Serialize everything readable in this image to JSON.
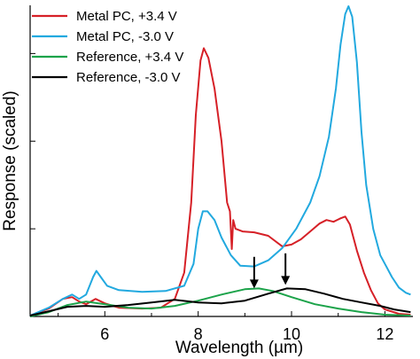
{
  "chart_data": {
    "type": "line",
    "xlabel": "Wavelength (µm)",
    "ylabel": "Response (scaled)",
    "xlim": [
      4.4,
      12.6
    ],
    "ylim": [
      0,
      3.55
    ],
    "x_ticks": [
      6,
      8,
      10,
      12
    ],
    "x_tick_labels": [
      "6",
      "8",
      "10",
      "12"
    ],
    "y_ticks": [
      1,
      2,
      3
    ],
    "legend_position": "top-left",
    "grid": false,
    "series": [
      {
        "name": "Metal PC, +3.4 V",
        "color": "#d62027",
        "points": [
          [
            4.4,
            0.01
          ],
          [
            4.8,
            0.09
          ],
          [
            5.1,
            0.2
          ],
          [
            5.3,
            0.22
          ],
          [
            5.45,
            0.17
          ],
          [
            5.6,
            0.14
          ],
          [
            5.8,
            0.2
          ],
          [
            6.0,
            0.15
          ],
          [
            6.3,
            0.1
          ],
          [
            6.8,
            0.09
          ],
          [
            7.2,
            0.1
          ],
          [
            7.5,
            0.2
          ],
          [
            7.7,
            0.5
          ],
          [
            7.85,
            1.3
          ],
          [
            7.95,
            2.3
          ],
          [
            8.05,
            2.92
          ],
          [
            8.12,
            3.06
          ],
          [
            8.22,
            2.95
          ],
          [
            8.35,
            2.6
          ],
          [
            8.5,
            2.0
          ],
          [
            8.62,
            1.3
          ],
          [
            8.68,
            1.2
          ],
          [
            8.72,
            0.77
          ],
          [
            8.75,
            1.1
          ],
          [
            8.8,
            1.0
          ],
          [
            8.95,
            0.97
          ],
          [
            9.2,
            0.96
          ],
          [
            9.5,
            0.92
          ],
          [
            9.8,
            0.8
          ],
          [
            10.0,
            0.82
          ],
          [
            10.2,
            0.88
          ],
          [
            10.4,
            0.97
          ],
          [
            10.6,
            1.06
          ],
          [
            10.75,
            1.1
          ],
          [
            10.9,
            1.08
          ],
          [
            11.05,
            1.12
          ],
          [
            11.15,
            1.14
          ],
          [
            11.25,
            1.05
          ],
          [
            11.4,
            0.75
          ],
          [
            11.55,
            0.5
          ],
          [
            11.7,
            0.3
          ],
          [
            11.85,
            0.15
          ],
          [
            12.0,
            0.08
          ],
          [
            12.3,
            0.03
          ],
          [
            12.55,
            0.02
          ]
        ]
      },
      {
        "name": "Metal PC, -3.0 V",
        "color": "#22a9df",
        "points": [
          [
            4.4,
            0.01
          ],
          [
            4.8,
            0.1
          ],
          [
            5.1,
            0.2
          ],
          [
            5.3,
            0.25
          ],
          [
            5.45,
            0.2
          ],
          [
            5.6,
            0.25
          ],
          [
            5.75,
            0.45
          ],
          [
            5.82,
            0.52
          ],
          [
            5.9,
            0.46
          ],
          [
            6.05,
            0.35
          ],
          [
            6.3,
            0.3
          ],
          [
            6.8,
            0.28
          ],
          [
            7.3,
            0.29
          ],
          [
            7.7,
            0.35
          ],
          [
            7.9,
            0.6
          ],
          [
            8.0,
            1.0
          ],
          [
            8.1,
            1.2
          ],
          [
            8.2,
            1.2
          ],
          [
            8.35,
            1.1
          ],
          [
            8.5,
            0.9
          ],
          [
            8.7,
            0.7
          ],
          [
            8.9,
            0.58
          ],
          [
            9.2,
            0.57
          ],
          [
            9.5,
            0.64
          ],
          [
            9.8,
            0.78
          ],
          [
            10.1,
            1.0
          ],
          [
            10.4,
            1.3
          ],
          [
            10.6,
            1.6
          ],
          [
            10.8,
            2.05
          ],
          [
            10.95,
            2.6
          ],
          [
            11.05,
            3.1
          ],
          [
            11.15,
            3.45
          ],
          [
            11.22,
            3.54
          ],
          [
            11.3,
            3.42
          ],
          [
            11.4,
            2.9
          ],
          [
            11.5,
            2.1
          ],
          [
            11.6,
            1.5
          ],
          [
            11.75,
            1.0
          ],
          [
            11.9,
            0.7
          ],
          [
            12.0,
            0.6
          ],
          [
            12.15,
            0.45
          ],
          [
            12.3,
            0.33
          ],
          [
            12.45,
            0.27
          ],
          [
            12.55,
            0.25
          ]
        ]
      },
      {
        "name": "Reference, +3.4 V",
        "color": "#1ca34a",
        "points": [
          [
            4.4,
            0.0
          ],
          [
            4.8,
            0.05
          ],
          [
            5.2,
            0.13
          ],
          [
            5.6,
            0.17
          ],
          [
            6.0,
            0.14
          ],
          [
            6.5,
            0.1
          ],
          [
            7.0,
            0.09
          ],
          [
            7.5,
            0.12
          ],
          [
            8.0,
            0.18
          ],
          [
            8.5,
            0.25
          ],
          [
            9.0,
            0.31
          ],
          [
            9.3,
            0.32
          ],
          [
            9.6,
            0.29
          ],
          [
            10.0,
            0.22
          ],
          [
            10.5,
            0.14
          ],
          [
            11.0,
            0.09
          ],
          [
            11.5,
            0.05
          ],
          [
            12.0,
            0.02
          ],
          [
            12.55,
            0.01
          ]
        ]
      },
      {
        "name": "Reference, -3.0 V",
        "color": "#000000",
        "points": [
          [
            4.4,
            0.01
          ],
          [
            4.8,
            0.06
          ],
          [
            5.2,
            0.11
          ],
          [
            5.6,
            0.12
          ],
          [
            6.0,
            0.11
          ],
          [
            6.5,
            0.13
          ],
          [
            7.0,
            0.16
          ],
          [
            7.5,
            0.19
          ],
          [
            8.0,
            0.16
          ],
          [
            8.5,
            0.15
          ],
          [
            9.0,
            0.18
          ],
          [
            9.5,
            0.26
          ],
          [
            9.9,
            0.32
          ],
          [
            10.3,
            0.31
          ],
          [
            10.7,
            0.26
          ],
          [
            11.1,
            0.2
          ],
          [
            11.5,
            0.16
          ],
          [
            11.9,
            0.12
          ],
          [
            12.2,
            0.08
          ],
          [
            12.55,
            0.05
          ]
        ]
      }
    ],
    "annotations": [
      {
        "type": "arrow",
        "x": 9.2,
        "y_from": 0.68,
        "y_to": 0.32
      },
      {
        "type": "arrow",
        "x": 9.87,
        "y_from": 0.72,
        "y_to": 0.36
      }
    ]
  }
}
